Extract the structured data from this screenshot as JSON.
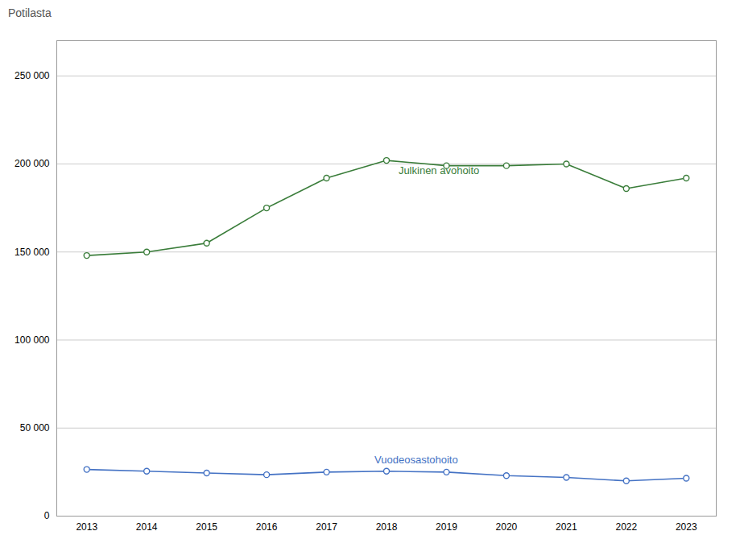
{
  "chart_data": {
    "type": "line",
    "ylabel": "Potilasta",
    "x": [
      2013,
      2014,
      2015,
      2016,
      2017,
      2018,
      2019,
      2020,
      2021,
      2022,
      2023
    ],
    "series": [
      {
        "color": "#3a7d3a",
        "marker": "circle",
        "values": [
          148000,
          150000,
          155000,
          175000,
          192000,
          202000,
          199000,
          199000,
          200000,
          186000,
          192000
        ]
      },
      {
        "color": "#4472c4",
        "marker": "circle",
        "values": [
          26500,
          25500,
          24500,
          23500,
          25000,
          25500,
          25000,
          23000,
          22000,
          20000,
          21500
        ]
      }
    ],
    "annotations": [
      {
        "text": "Julkinen avohoito",
        "x": 2018.2,
        "y": 196000,
        "color": "#3a7d3a"
      },
      {
        "text": "Vuodeosastohoito",
        "x": 2017.8,
        "y": 32000,
        "color": "#4472c4"
      }
    ],
    "xlim": [
      2012.5,
      2023.5
    ],
    "xticks": [
      2013,
      2014,
      2015,
      2016,
      2017,
      2018,
      2019,
      2020,
      2021,
      2022,
      2023
    ],
    "ylim": [
      0,
      270000
    ],
    "yticks": [
      0,
      {
        "value": 50000,
        "label": "50 000"
      },
      {
        "value": 100000,
        "label": "100 000"
      },
      {
        "value": 150000,
        "label": "150 000"
      },
      {
        "value": 200000,
        "label": "200 000"
      },
      {
        "value": 250000,
        "label": "250 000"
      }
    ],
    "grid": "y"
  }
}
